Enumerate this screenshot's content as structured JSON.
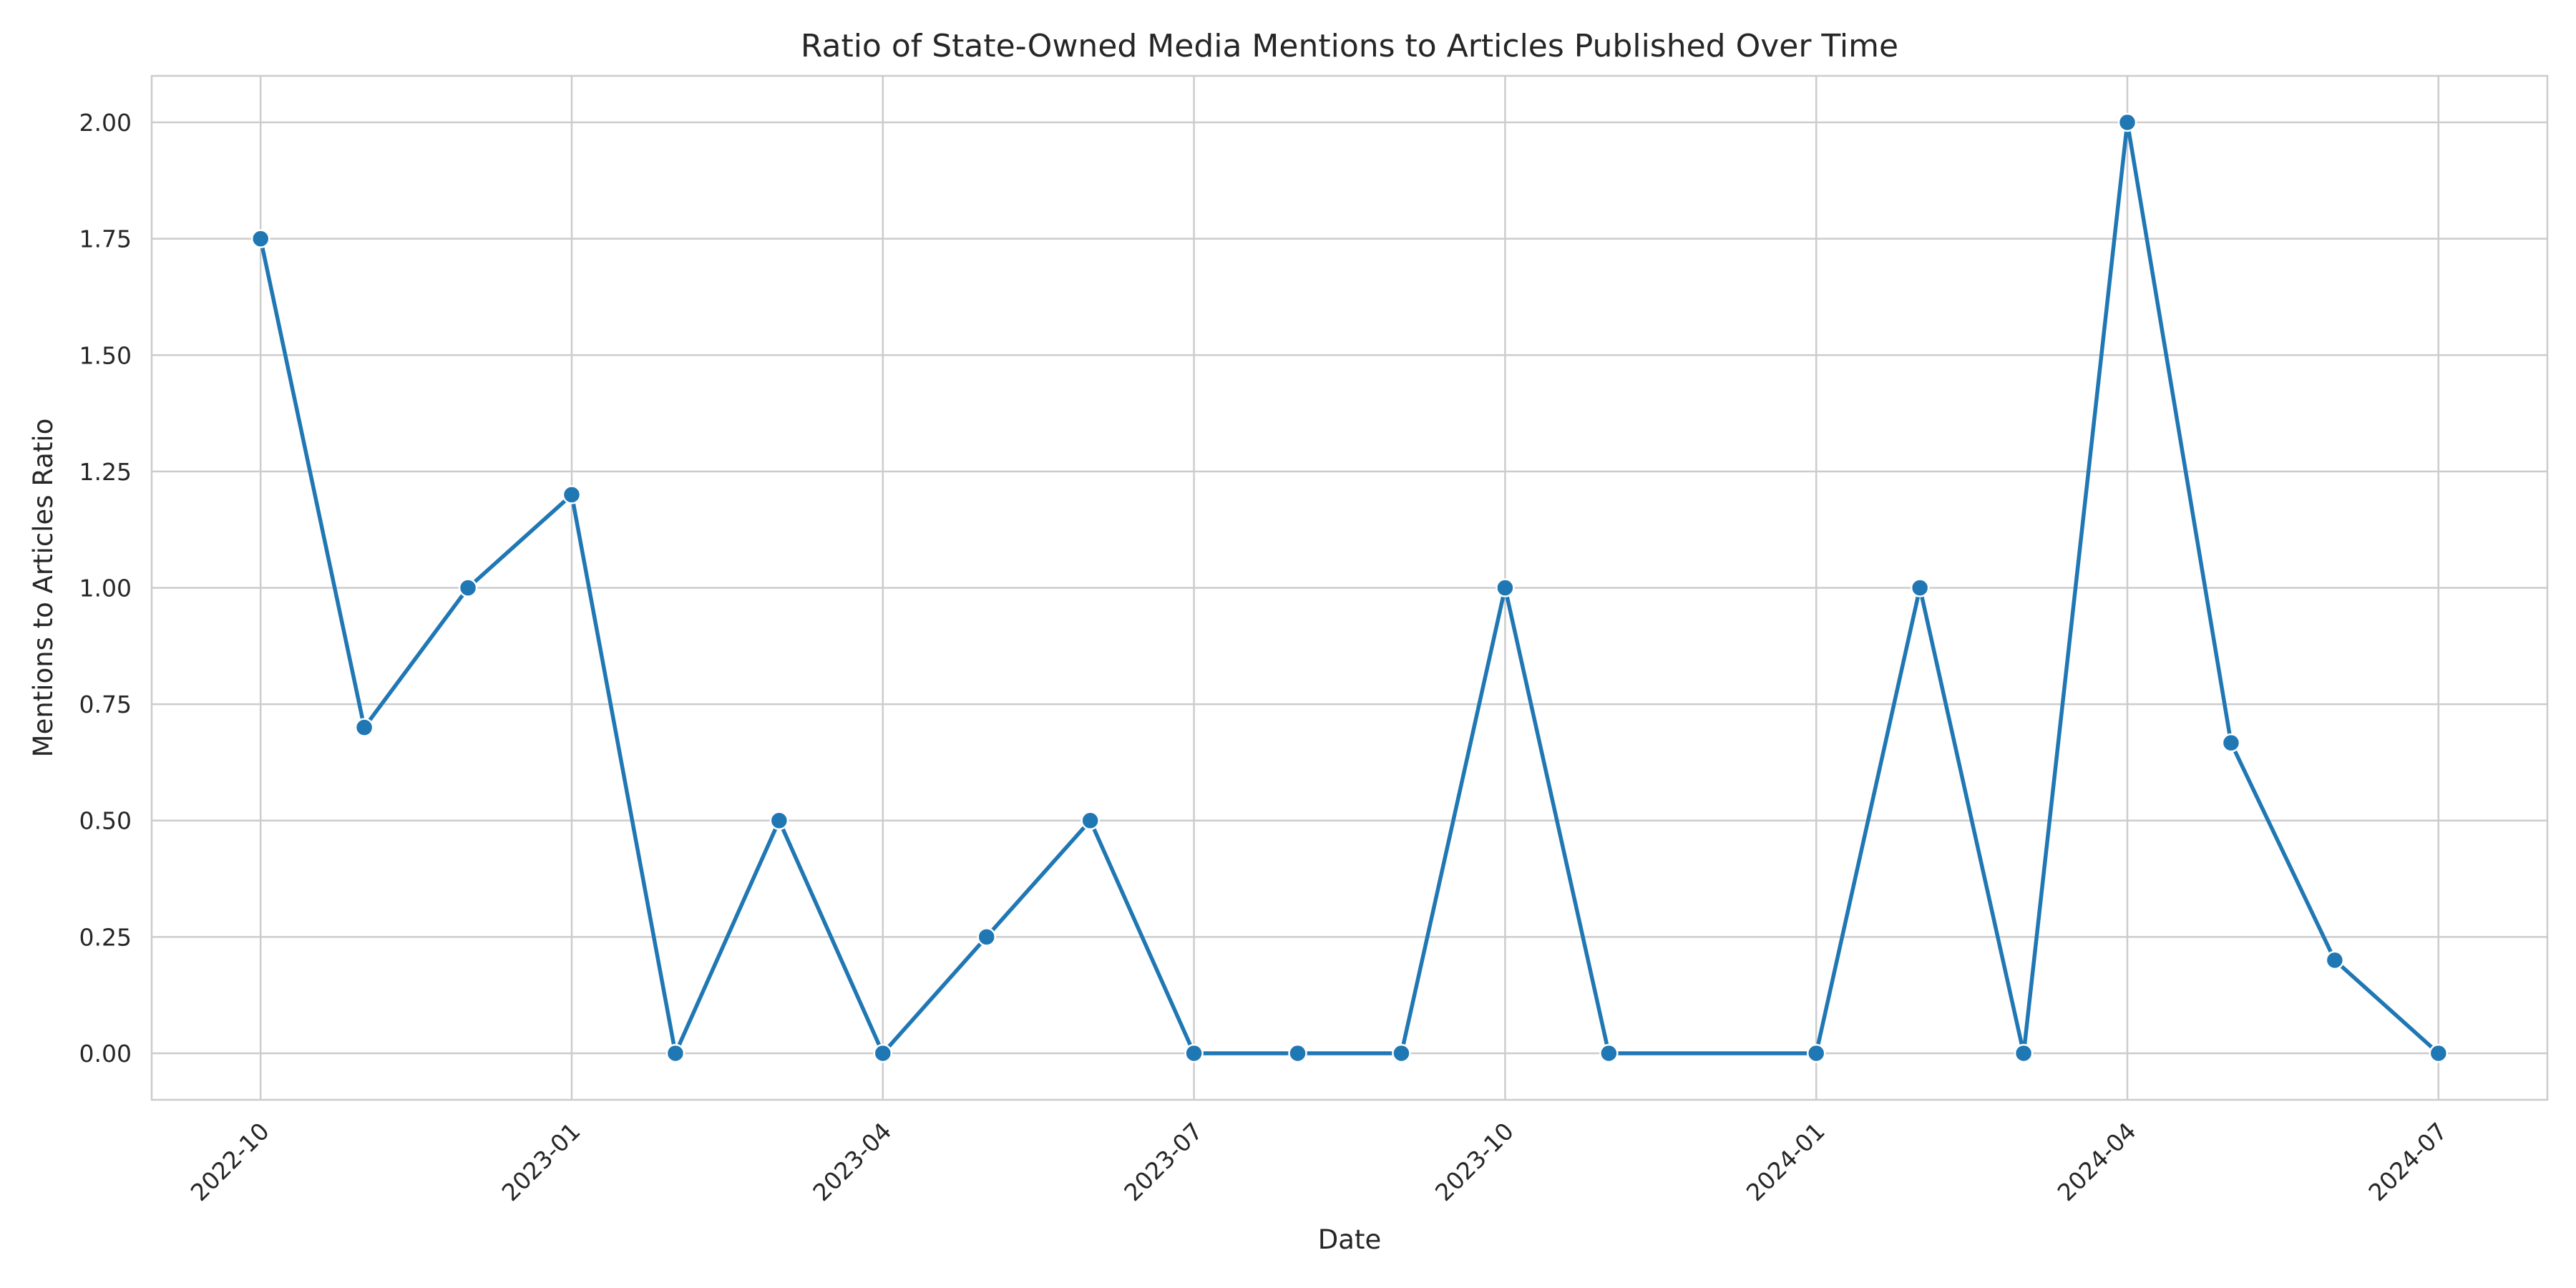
{
  "chart_data": {
    "type": "line",
    "title": "Ratio of State-Owned Media Mentions to Articles Published Over Time",
    "xlabel": "Date",
    "ylabel": "Mentions to Articles Ratio",
    "xlim": [
      "2022-09-01",
      "2024-08-01"
    ],
    "ylim": [
      -0.1,
      2.1
    ],
    "x_ticks": [
      "2022-10",
      "2023-01",
      "2023-04",
      "2023-07",
      "2023-10",
      "2024-01",
      "2024-04",
      "2024-07"
    ],
    "y_ticks": [
      "0.00",
      "0.25",
      "0.50",
      "0.75",
      "1.00",
      "1.25",
      "1.50",
      "1.75",
      "2.00"
    ],
    "grid": true,
    "colors": {
      "line": "#1f77b4",
      "grid": "#cccccc"
    },
    "series": [
      {
        "x": [
          "2022-10",
          "2022-11",
          "2022-12",
          "2023-01",
          "2023-02",
          "2023-03",
          "2023-04",
          "2023-05",
          "2023-06",
          "2023-07",
          "2023-08",
          "2023-09",
          "2023-10",
          "2023-11",
          "2024-01",
          "2024-02",
          "2024-03",
          "2024-04",
          "2024-05",
          "2024-06",
          "2024-07"
        ],
        "values": [
          1.75,
          0.7,
          1.0,
          1.2,
          0.0,
          0.5,
          0.0,
          0.25,
          0.5,
          0.0,
          0.0,
          0.0,
          1.0,
          0.0,
          0.0,
          1.0,
          0.0,
          2.0,
          0.667,
          0.2,
          0.0
        ]
      }
    ]
  }
}
